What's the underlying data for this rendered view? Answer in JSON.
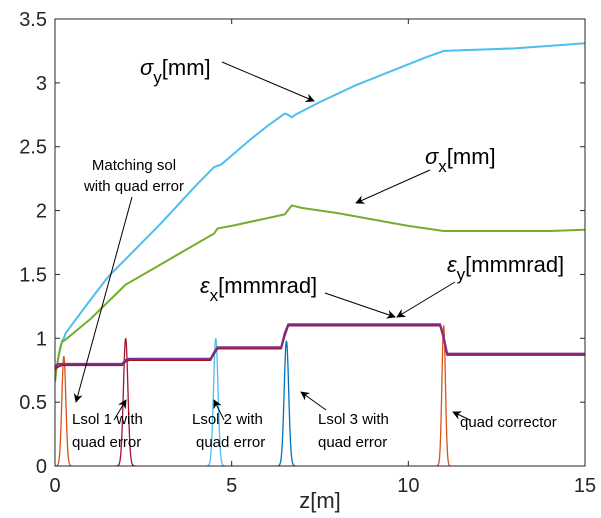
{
  "chart_data": {
    "type": "line",
    "title": "",
    "xlabel": "z[m]",
    "ylabel": "",
    "xlim": [
      0,
      15
    ],
    "ylim": [
      0,
      3.5
    ],
    "xticks": [
      0,
      5,
      10,
      15
    ],
    "yticks": [
      0,
      0.5,
      1,
      1.5,
      2,
      2.5,
      3,
      3.5
    ],
    "tick_labels_x": [
      "0",
      "5",
      "10",
      "15"
    ],
    "tick_labels_y": [
      "0",
      "0.5",
      "1",
      "1.5",
      "2",
      "2.5",
      "3",
      "3.5"
    ],
    "grid": false,
    "legend": "none",
    "series": [
      {
        "name": "σy[mm]",
        "color": "#4DBEEE",
        "x": [
          0,
          0.05,
          0.1,
          0.15,
          0.2,
          0.25,
          0.3,
          1.0,
          1.5,
          2.0,
          2.5,
          3.0,
          3.5,
          4.0,
          4.5,
          4.6,
          4.7,
          5.0,
          5.5,
          6.0,
          6.5,
          6.6,
          6.7,
          6.8,
          7.5,
          8.5,
          9.5,
          10.5,
          11.0,
          12.0,
          13.0,
          14.0,
          15.0
        ],
        "y": [
          0.66,
          0.78,
          0.85,
          0.92,
          0.98,
          1.0,
          1.04,
          1.3,
          1.48,
          1.62,
          1.76,
          1.9,
          2.05,
          2.2,
          2.34,
          2.35,
          2.36,
          2.43,
          2.55,
          2.66,
          2.76,
          2.75,
          2.73,
          2.75,
          2.85,
          2.98,
          3.09,
          3.2,
          3.25,
          3.26,
          3.27,
          3.29,
          3.31
        ]
      },
      {
        "name": "σx[mm]",
        "color": "#77AC30",
        "x": [
          0,
          0.05,
          0.1,
          0.15,
          0.2,
          0.25,
          0.3,
          1.0,
          2.0,
          3.0,
          4.0,
          4.5,
          4.6,
          5.0,
          6.0,
          6.5,
          6.7,
          7.0,
          8.0,
          9.0,
          10.0,
          11.0,
          12.0,
          13.0,
          14.0,
          15.0
        ],
        "y": [
          0.66,
          0.78,
          0.86,
          0.93,
          0.97,
          0.98,
          0.99,
          1.15,
          1.42,
          1.58,
          1.74,
          1.82,
          1.86,
          1.88,
          1.94,
          1.97,
          2.04,
          2.02,
          1.98,
          1.93,
          1.88,
          1.84,
          1.84,
          1.84,
          1.84,
          1.85
        ]
      },
      {
        "name": "εx[mmmrad]",
        "color": "#A2142F",
        "x": [
          0,
          0.1,
          0.2,
          0.3,
          1.9,
          2.0,
          2.1,
          4.4,
          4.5,
          4.6,
          6.4,
          6.5,
          6.6,
          10.9,
          11.0,
          11.1,
          15.0
        ],
        "y": [
          0.76,
          0.78,
          0.79,
          0.79,
          0.79,
          0.82,
          0.83,
          0.83,
          0.88,
          0.92,
          0.92,
          1.02,
          1.1,
          1.1,
          1.0,
          0.87,
          0.87
        ]
      },
      {
        "name": "εy[mmmrad]",
        "color": "#7E2F8E",
        "x": [
          0,
          0.1,
          0.2,
          0.3,
          1.9,
          2.0,
          2.1,
          4.4,
          4.5,
          4.6,
          6.4,
          6.5,
          6.6,
          10.9,
          11.0,
          11.1,
          15.0
        ],
        "y": [
          0.78,
          0.8,
          0.8,
          0.8,
          0.8,
          0.83,
          0.84,
          0.84,
          0.89,
          0.93,
          0.93,
          1.04,
          1.11,
          1.11,
          1.01,
          0.88,
          0.88
        ]
      }
    ],
    "solenoid_profiles": [
      {
        "label": "Matching sol with quad error",
        "center": 0.25,
        "peak": 0.86,
        "width": 0.08,
        "color": "#D95319"
      },
      {
        "label": "Lsol 1 with quad error",
        "center": 2.0,
        "peak": 1.0,
        "width": 0.09,
        "color": "#A2142F"
      },
      {
        "label": "Lsol 2 with quad error",
        "center": 4.55,
        "peak": 1.0,
        "width": 0.09,
        "color": "#4DBEEE"
      },
      {
        "label": "Lsol 3 with quad error",
        "center": 6.55,
        "peak": 0.98,
        "width": 0.09,
        "color": "#0072BD"
      },
      {
        "label": "quad corrector",
        "center": 11.0,
        "peak": 1.1,
        "width": 0.07,
        "color": "#D95319"
      }
    ],
    "annotations": {
      "sigma_y": {
        "sym": "σ",
        "sub": "y",
        "unit": "[mm]"
      },
      "sigma_x": {
        "sym": "σ",
        "sub": "x",
        "unit": "[mm]"
      },
      "eps_x": {
        "sym": "ε",
        "sub": "x",
        "unit": "[mmmrad]"
      },
      "eps_y": {
        "sym": "ε",
        "sub": "y",
        "unit": "[mmmrad]"
      },
      "matching": {
        "line1": "Matching sol",
        "line2": "with quad error"
      },
      "lsol1": {
        "line1": "Lsol 1 with",
        "line2": "quad error"
      },
      "lsol2": {
        "line1": "Lsol 2 with",
        "line2": "quad error"
      },
      "lsol3": {
        "line1": "Lsol 3 with",
        "line2": "quad error"
      },
      "corrector": {
        "line1": "quad corrector"
      }
    }
  }
}
